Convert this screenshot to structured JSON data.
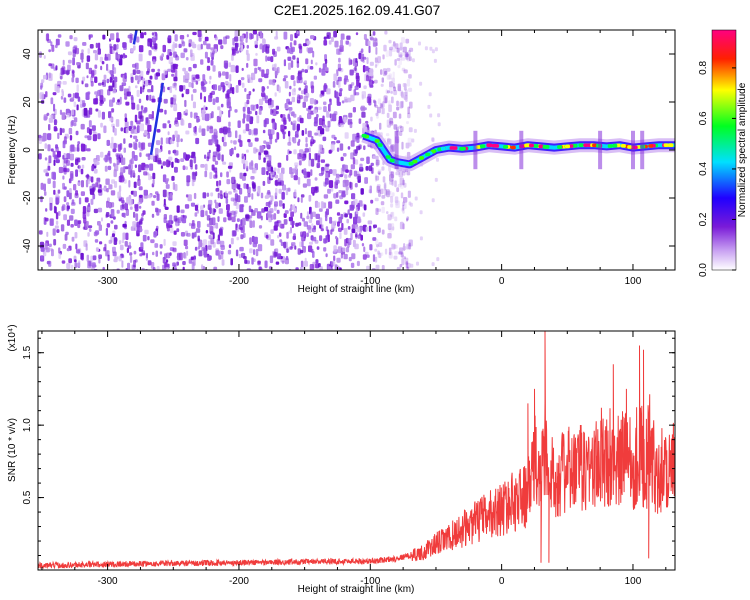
{
  "title": "C2E1.2025.162.09.41.G07",
  "chart_data": [
    {
      "type": "heatmap",
      "xlabel": "Height of straight line (km)",
      "ylabel": "Frequency (Hz)",
      "xlim": [
        -353,
        132
      ],
      "ylim": [
        -50,
        50
      ],
      "xticks": [
        -300,
        -200,
        -100,
        0,
        100
      ],
      "yticks": [
        -40,
        -20,
        0,
        20,
        40
      ],
      "colorbar": {
        "label": "Normalized spectral amplitude",
        "range": [
          0,
          0.95
        ],
        "ticks": [
          0,
          0.2,
          0.4,
          0.6,
          0.8
        ],
        "colormap": [
          "#ffffff",
          "#7a1bd8",
          "#2000ff",
          "#00e0ff",
          "#00ff20",
          "#ffff00",
          "#ff2000",
          "#ff0080"
        ]
      },
      "noise_region": {
        "x_from": -353,
        "x_to": -78,
        "color": "#7a1bd8"
      },
      "signal_ridge": {
        "x": [
          -105,
          -95,
          -85,
          -80,
          -70,
          -60,
          -50,
          -40,
          -30,
          -20,
          -10,
          0,
          10,
          20,
          30,
          40,
          50,
          60,
          70,
          80,
          90,
          100,
          110,
          120,
          132
        ],
        "y": [
          6,
          4,
          -4,
          -5,
          -6,
          -3,
          0,
          1,
          0.5,
          1,
          2,
          1.5,
          1,
          2,
          1.5,
          1,
          1.5,
          2,
          2,
          1.5,
          2,
          1,
          1.5,
          2,
          2
        ]
      }
    },
    {
      "type": "line",
      "xlabel": "Height of straight line (km)",
      "ylabel": "SNR (10 * v/v)",
      "y_multiplier": "(x10⁴)",
      "xlim": [
        -353,
        132
      ],
      "ylim": [
        0,
        1.65
      ],
      "xticks": [
        -300,
        -200,
        -100,
        0,
        100
      ],
      "yticks": [
        0.5,
        1.0,
        1.5
      ],
      "ytick_labels": [
        "0.5",
        "1.0",
        "1.5"
      ],
      "series": [
        {
          "color": "#f03c3c",
          "x": [
            -353,
            -300,
            -200,
            -120,
            -100,
            -80,
            -60,
            -50,
            -40,
            -30,
            -20,
            -10,
            0,
            10,
            20,
            25,
            30,
            33,
            35,
            40,
            50,
            60,
            70,
            80,
            85,
            90,
            95,
            100,
            105,
            110,
            112,
            115,
            120,
            125,
            132
          ],
          "y": [
            0.03,
            0.04,
            0.05,
            0.06,
            0.06,
            0.08,
            0.12,
            0.18,
            0.22,
            0.28,
            0.33,
            0.38,
            0.42,
            0.48,
            0.52,
            0.75,
            0.62,
            0.95,
            0.6,
            0.65,
            0.68,
            0.7,
            0.72,
            0.74,
            0.85,
            0.7,
            0.9,
            0.72,
            0.85,
            0.7,
            0.9,
            0.72,
            0.7,
            0.71,
            0.7
          ]
        }
      ]
    }
  ],
  "labels": {
    "p1_xlabel": "Height of straight line (km)",
    "p1_ylabel": "Frequency (Hz)",
    "cb_label": "Normalized spectral amplitude",
    "p2_xlabel": "Height of straight line (km)",
    "p2_ylabel": "SNR (10 * v/v)",
    "p2_mult": "(x10⁴)"
  }
}
